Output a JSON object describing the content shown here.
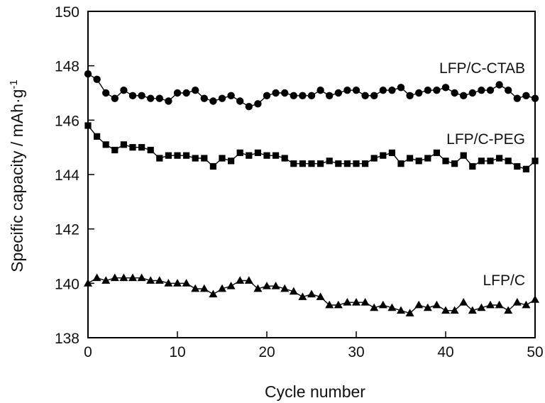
{
  "chart_data": {
    "type": "scatter",
    "xlabel": "Cycle number",
    "ylabel": "Specific capacity / mAh·g",
    "ylabel_sup": "-1",
    "xlim": [
      0,
      50
    ],
    "ylim": [
      138,
      150
    ],
    "xticks": [
      0,
      10,
      20,
      30,
      40,
      50
    ],
    "yticks": [
      138,
      140,
      142,
      144,
      146,
      148,
      150
    ],
    "grid": false,
    "legend": "none",
    "series": [
      {
        "name": "LFP/C-CTAB",
        "marker": "circle",
        "x": [
          0,
          1,
          2,
          3,
          4,
          5,
          6,
          7,
          8,
          9,
          10,
          11,
          12,
          13,
          14,
          15,
          16,
          17,
          18,
          19,
          20,
          21,
          22,
          23,
          24,
          25,
          26,
          27,
          28,
          29,
          30,
          31,
          32,
          33,
          34,
          35,
          36,
          37,
          38,
          39,
          40,
          41,
          42,
          43,
          44,
          45,
          46,
          47,
          48,
          49,
          50
        ],
        "y": [
          147.7,
          147.5,
          147.0,
          146.8,
          147.1,
          146.9,
          146.9,
          146.8,
          146.8,
          146.7,
          147.0,
          147.0,
          147.1,
          146.8,
          146.7,
          146.8,
          146.9,
          146.7,
          146.5,
          146.6,
          146.9,
          147.0,
          147.0,
          146.9,
          146.9,
          146.9,
          147.1,
          146.9,
          147.0,
          147.1,
          147.1,
          146.9,
          146.9,
          147.1,
          147.1,
          147.2,
          146.9,
          147.0,
          147.1,
          147.1,
          147.2,
          147.0,
          146.9,
          147.0,
          147.1,
          147.1,
          147.3,
          147.1,
          146.8,
          146.9,
          146.8
        ]
      },
      {
        "name": "LFP/C-PEG",
        "marker": "square",
        "x": [
          0,
          1,
          2,
          3,
          4,
          5,
          6,
          7,
          8,
          9,
          10,
          11,
          12,
          13,
          14,
          15,
          16,
          17,
          18,
          19,
          20,
          21,
          22,
          23,
          24,
          25,
          26,
          27,
          28,
          29,
          30,
          31,
          32,
          33,
          34,
          35,
          36,
          37,
          38,
          39,
          40,
          41,
          42,
          43,
          44,
          45,
          46,
          47,
          48,
          49,
          50
        ],
        "y": [
          145.8,
          145.4,
          145.1,
          144.9,
          145.1,
          145.0,
          145.0,
          144.9,
          144.6,
          144.7,
          144.7,
          144.7,
          144.6,
          144.6,
          144.3,
          144.6,
          144.5,
          144.8,
          144.7,
          144.8,
          144.7,
          144.7,
          144.6,
          144.4,
          144.4,
          144.4,
          144.4,
          144.5,
          144.4,
          144.4,
          144.4,
          144.4,
          144.6,
          144.7,
          144.8,
          144.4,
          144.6,
          144.5,
          144.6,
          144.8,
          144.5,
          144.4,
          144.7,
          144.3,
          144.5,
          144.5,
          144.6,
          144.5,
          144.3,
          144.2,
          144.5
        ]
      },
      {
        "name": "LFP/C",
        "marker": "triangle",
        "x": [
          0,
          1,
          2,
          3,
          4,
          5,
          6,
          7,
          8,
          9,
          10,
          11,
          12,
          13,
          14,
          15,
          16,
          17,
          18,
          19,
          20,
          21,
          22,
          23,
          24,
          25,
          26,
          27,
          28,
          29,
          30,
          31,
          32,
          33,
          34,
          35,
          36,
          37,
          38,
          39,
          40,
          41,
          42,
          43,
          44,
          45,
          46,
          47,
          48,
          49,
          50
        ],
        "y": [
          140.0,
          140.2,
          140.1,
          140.2,
          140.2,
          140.2,
          140.2,
          140.1,
          140.1,
          140.0,
          140.0,
          140.0,
          139.8,
          139.8,
          139.6,
          139.8,
          139.9,
          140.1,
          140.1,
          139.8,
          139.9,
          139.9,
          139.8,
          139.7,
          139.5,
          139.6,
          139.5,
          139.2,
          139.2,
          139.3,
          139.3,
          139.3,
          139.1,
          139.2,
          139.1,
          139.0,
          138.9,
          139.2,
          139.1,
          139.2,
          139.0,
          139.0,
          139.3,
          139.0,
          139.1,
          139.2,
          139.2,
          139.0,
          139.3,
          139.2,
          139.4
        ]
      }
    ]
  }
}
